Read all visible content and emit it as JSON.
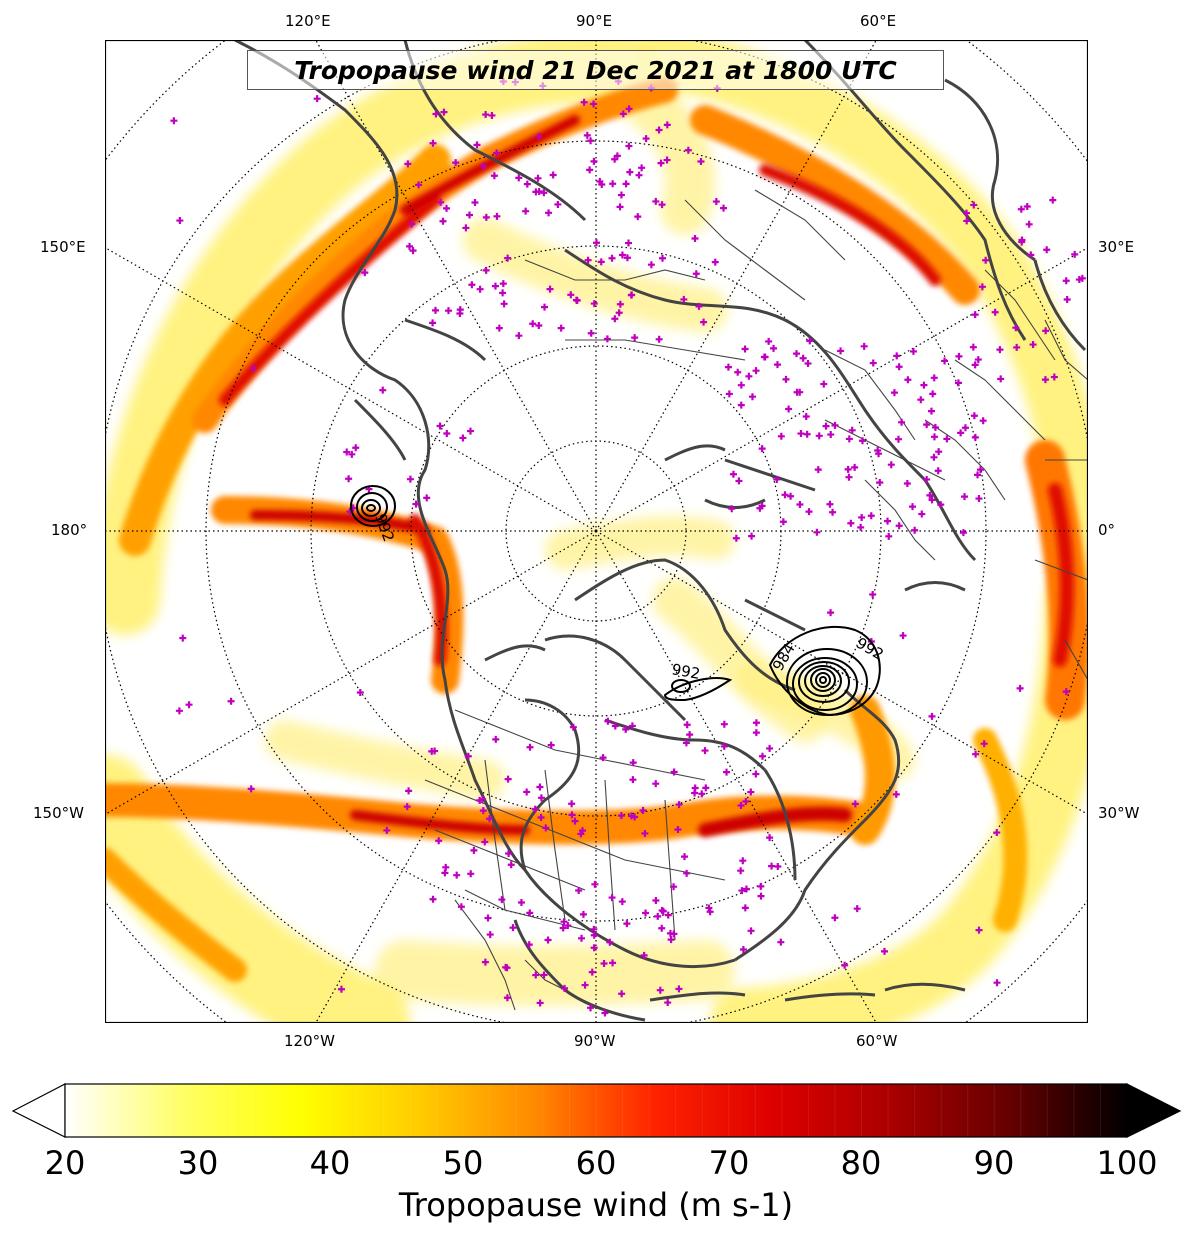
{
  "title": "Tropopause wind 21 Dec 2021 at 1800 UTC",
  "lon_labels": {
    "top": [
      "120°E",
      "90°E",
      "60°E"
    ],
    "bottom": [
      "120°W",
      "90°W",
      "60°W"
    ],
    "left": [
      "150°E",
      "180°",
      "150°W"
    ],
    "right": [
      "30°E",
      "0°",
      "30°W"
    ]
  },
  "contour_labels": [
    "992",
    "984",
    "992",
    "992"
  ],
  "colorbar": {
    "label": "Tropopause wind (m s-1)",
    "ticks": [
      "20",
      "30",
      "40",
      "50",
      "60",
      "70",
      "80",
      "90",
      "100"
    ],
    "min": 20,
    "max": 100,
    "extend": "both",
    "colormap": [
      "#ffffff",
      "#ffff66",
      "#ffff00",
      "#ffcc00",
      "#ff8800",
      "#ff2200",
      "#dd0000",
      "#aa0000",
      "#660000",
      "#000000"
    ]
  },
  "colors": {
    "coastline": "#444444",
    "station_marker": "#c000c0",
    "contour": "#000000"
  }
}
